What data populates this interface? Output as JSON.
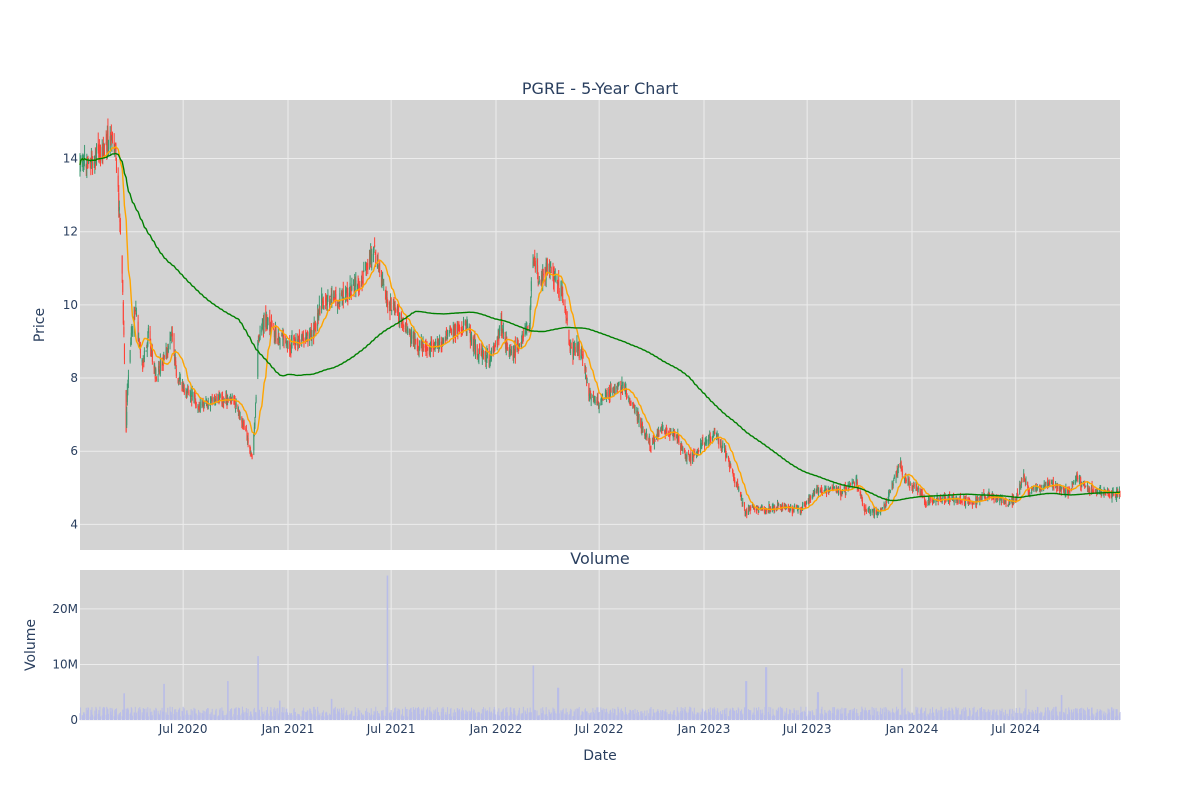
{
  "chart_data": [
    {
      "type": "candlestick",
      "title": "PGRE - 5-Year Chart",
      "xlabel": "",
      "ylabel": "Price",
      "xlim": [
        "2020-01-02",
        "2024-12-31"
      ],
      "ylim": [
        3.3,
        15.6
      ],
      "y_ticks": [
        4,
        6,
        8,
        10,
        12,
        14
      ],
      "grid": true,
      "plot_background": "#d3d3d3",
      "colors": {
        "increasing": "#3d9970",
        "decreasing": "#ff4136",
        "ma_short": "#ffa500",
        "ma_long": "#008000"
      },
      "price_anchors": [
        [
          "2020-01-02",
          13.8
        ],
        [
          "2020-01-20",
          13.9
        ],
        [
          "2020-02-05",
          14.1
        ],
        [
          "2020-02-20",
          14.5
        ],
        [
          "2020-02-27",
          14.8
        ],
        [
          "2020-03-05",
          14.2
        ],
        [
          "2020-03-09",
          13.2
        ],
        [
          "2020-03-12",
          12.0
        ],
        [
          "2020-03-16",
          10.8
        ],
        [
          "2020-03-20",
          8.5
        ],
        [
          "2020-03-23",
          6.6
        ],
        [
          "2020-03-26",
          8.0
        ],
        [
          "2020-03-31",
          9.0
        ],
        [
          "2020-04-08",
          9.8
        ],
        [
          "2020-04-20",
          8.3
        ],
        [
          "2020-05-01",
          9.2
        ],
        [
          "2020-05-15",
          8.0
        ],
        [
          "2020-06-01",
          8.7
        ],
        [
          "2020-06-12",
          9.2
        ],
        [
          "2020-06-20",
          8.0
        ],
        [
          "2020-07-10",
          7.6
        ],
        [
          "2020-08-01",
          7.2
        ],
        [
          "2020-09-01",
          7.4
        ],
        [
          "2020-09-20",
          7.5
        ],
        [
          "2020-10-15",
          6.8
        ],
        [
          "2020-10-30",
          5.8
        ],
        [
          "2020-11-06",
          7.4
        ],
        [
          "2020-11-09",
          9.0
        ],
        [
          "2020-11-20",
          9.6
        ],
        [
          "2020-12-10",
          9.2
        ],
        [
          "2021-01-01",
          8.9
        ],
        [
          "2021-01-20",
          9.0
        ],
        [
          "2021-02-15",
          9.3
        ],
        [
          "2021-03-01",
          10.1
        ],
        [
          "2021-04-01",
          10.2
        ],
        [
          "2021-05-01",
          10.5
        ],
        [
          "2021-05-20",
          11.0
        ],
        [
          "2021-06-01",
          11.5
        ],
        [
          "2021-06-15",
          10.6
        ],
        [
          "2021-07-01",
          10.0
        ],
        [
          "2021-07-20",
          9.6
        ],
        [
          "2021-08-01",
          9.2
        ],
        [
          "2021-08-20",
          8.9
        ],
        [
          "2021-09-15",
          8.8
        ],
        [
          "2021-10-15",
          9.3
        ],
        [
          "2021-11-10",
          9.4
        ],
        [
          "2021-11-30",
          8.7
        ],
        [
          "2021-12-20",
          8.5
        ],
        [
          "2022-01-10",
          9.4
        ],
        [
          "2022-01-25",
          8.6
        ],
        [
          "2022-02-15",
          9.0
        ],
        [
          "2022-03-01",
          9.5
        ],
        [
          "2022-03-07",
          11.3
        ],
        [
          "2022-03-20",
          10.6
        ],
        [
          "2022-04-01",
          11.0
        ],
        [
          "2022-04-20",
          10.6
        ],
        [
          "2022-05-01",
          10.0
        ],
        [
          "2022-05-12",
          8.8
        ],
        [
          "2022-06-01",
          8.7
        ],
        [
          "2022-06-13",
          7.6
        ],
        [
          "2022-06-25",
          7.3
        ],
        [
          "2022-07-15",
          7.5
        ],
        [
          "2022-08-12",
          7.8
        ],
        [
          "2022-09-01",
          7.1
        ],
        [
          "2022-09-30",
          6.2
        ],
        [
          "2022-10-20",
          6.6
        ],
        [
          "2022-11-15",
          6.4
        ],
        [
          "2022-12-01",
          5.8
        ],
        [
          "2022-12-20",
          6.0
        ],
        [
          "2023-01-20",
          6.5
        ],
        [
          "2023-02-10",
          5.9
        ],
        [
          "2023-03-01",
          5.0
        ],
        [
          "2023-03-15",
          4.3
        ],
        [
          "2023-03-25",
          4.5
        ],
        [
          "2023-04-20",
          4.4
        ],
        [
          "2023-05-20",
          4.5
        ],
        [
          "2023-06-20",
          4.4
        ],
        [
          "2023-07-15",
          4.9
        ],
        [
          "2023-08-01",
          5.0
        ],
        [
          "2023-09-01",
          4.9
        ],
        [
          "2023-09-25",
          5.2
        ],
        [
          "2023-10-10",
          4.4
        ],
        [
          "2023-10-30",
          4.3
        ],
        [
          "2023-11-15",
          4.5
        ],
        [
          "2023-12-01",
          5.2
        ],
        [
          "2023-12-10",
          5.7
        ],
        [
          "2023-12-20",
          5.2
        ],
        [
          "2024-01-10",
          5.0
        ],
        [
          "2024-01-25",
          4.6
        ],
        [
          "2024-02-15",
          4.7
        ],
        [
          "2024-03-15",
          4.7
        ],
        [
          "2024-04-15",
          4.6
        ],
        [
          "2024-05-15",
          4.8
        ],
        [
          "2024-06-15",
          4.6
        ],
        [
          "2024-07-01",
          4.7
        ],
        [
          "2024-07-15",
          5.3
        ],
        [
          "2024-07-25",
          4.9
        ],
        [
          "2024-08-10",
          5.0
        ],
        [
          "2024-09-01",
          5.1
        ],
        [
          "2024-10-01",
          4.9
        ],
        [
          "2024-10-15",
          5.3
        ],
        [
          "2024-11-05",
          5.0
        ],
        [
          "2024-11-25",
          4.9
        ],
        [
          "2024-12-31",
          4.8
        ]
      ],
      "series": [
        {
          "kind": "candles",
          "period": "daily"
        },
        {
          "kind": "moving_average",
          "window_days": 20
        },
        {
          "kind": "moving_average",
          "window_days": 200
        }
      ]
    },
    {
      "type": "bar",
      "title": "Volume",
      "xlabel": "Date",
      "ylabel": "Volume",
      "ylim": [
        0,
        27000000
      ],
      "y_ticks": [
        {
          "value": 0,
          "label": "0"
        },
        {
          "value": 10000000,
          "label": "10M"
        },
        {
          "value": 20000000,
          "label": "20M"
        }
      ],
      "x_ticks": [
        {
          "date": "2020-07-01",
          "label": "Jul 2020"
        },
        {
          "date": "2021-01-01",
          "label": "Jan 2021"
        },
        {
          "date": "2021-07-01",
          "label": "Jul 2021"
        },
        {
          "date": "2022-01-01",
          "label": "Jan 2022"
        },
        {
          "date": "2022-07-01",
          "label": "Jul 2022"
        },
        {
          "date": "2023-01-01",
          "label": "Jan 2023"
        },
        {
          "date": "2023-07-01",
          "label": "Jul 2023"
        },
        {
          "date": "2024-01-01",
          "label": "Jan 2024"
        },
        {
          "date": "2024-07-01",
          "label": "Jul 2024"
        }
      ],
      "bar_color": "#b9bde8",
      "typical_volume": 1500000,
      "notable_volumes": [
        {
          "date": "2020-03-20",
          "value": 4800000
        },
        {
          "date": "2020-05-29",
          "value": 6500000
        },
        {
          "date": "2020-09-18",
          "value": 7000000
        },
        {
          "date": "2020-11-09",
          "value": 11500000
        },
        {
          "date": "2020-12-18",
          "value": 3500000
        },
        {
          "date": "2021-03-19",
          "value": 3800000
        },
        {
          "date": "2021-06-25",
          "value": 26000000
        },
        {
          "date": "2022-03-07",
          "value": 9800000
        },
        {
          "date": "2022-04-20",
          "value": 5800000
        },
        {
          "date": "2023-03-16",
          "value": 7000000
        },
        {
          "date": "2023-04-20",
          "value": 9500000
        },
        {
          "date": "2023-07-20",
          "value": 5000000
        },
        {
          "date": "2023-12-15",
          "value": 9300000
        },
        {
          "date": "2024-07-20",
          "value": 5500000
        },
        {
          "date": "2024-09-20",
          "value": 4500000
        }
      ]
    }
  ]
}
